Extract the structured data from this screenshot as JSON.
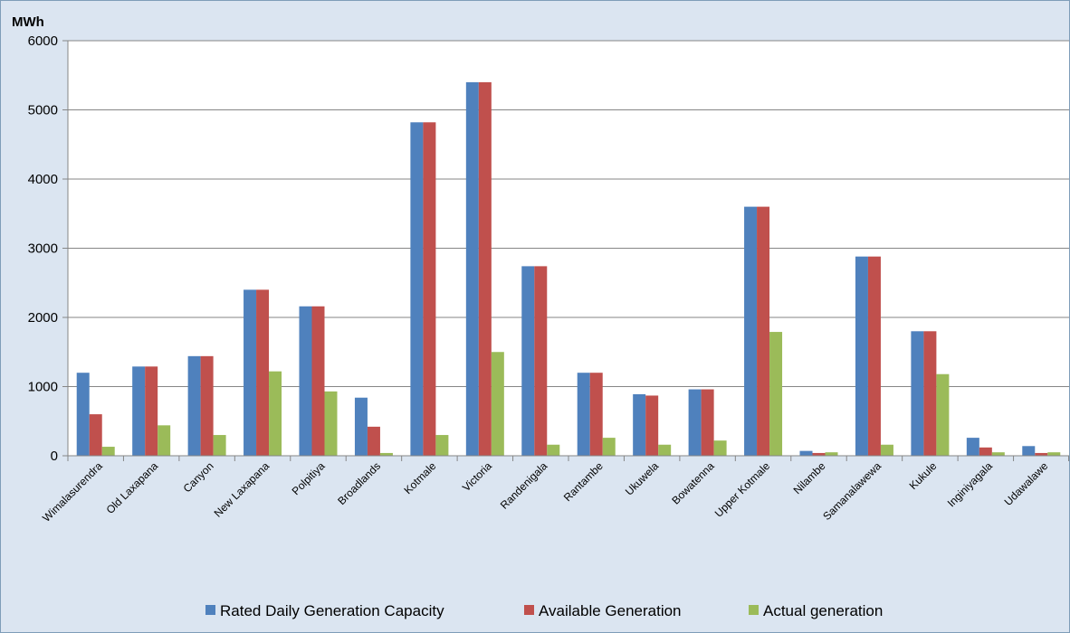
{
  "chart_data": {
    "type": "bar",
    "ylabel": "MWh",
    "ylim": [
      0,
      6000
    ],
    "yticks": [
      0,
      1000,
      2000,
      3000,
      4000,
      5000,
      6000
    ],
    "grid": true,
    "legend_position": "bottom",
    "categories": [
      "Wimalasurendra",
      "Old Laxapana",
      "Canyon",
      "New Laxapana",
      "Polpitiya",
      "Broadlands",
      "Kotmale",
      "Victoria",
      "Randenigala",
      "Rantambe",
      "Ukuwela",
      "Bowatenna",
      "Upper Kotmale",
      "Nilambe",
      "Samanalawewa",
      "Kukule",
      "Inginiyagala",
      "Udawalawe"
    ],
    "series": [
      {
        "name": "Rated Daily Generation Capacity",
        "color": "#4f81bd",
        "values": [
          1200,
          1290,
          1440,
          2400,
          2160,
          840,
          4820,
          5400,
          2740,
          1200,
          890,
          960,
          3600,
          70,
          2880,
          1800,
          260,
          140
        ]
      },
      {
        "name": "Available Generation",
        "color": "#c0504d",
        "values": [
          600,
          1290,
          1440,
          2400,
          2160,
          420,
          4820,
          5400,
          2740,
          1200,
          870,
          960,
          3600,
          40,
          2880,
          1800,
          120,
          40
        ]
      },
      {
        "name": "Actual generation",
        "color": "#9bbb59",
        "values": [
          130,
          440,
          300,
          1220,
          930,
          40,
          300,
          1500,
          160,
          260,
          160,
          220,
          1790,
          50,
          160,
          1180,
          50,
          50
        ]
      }
    ]
  }
}
